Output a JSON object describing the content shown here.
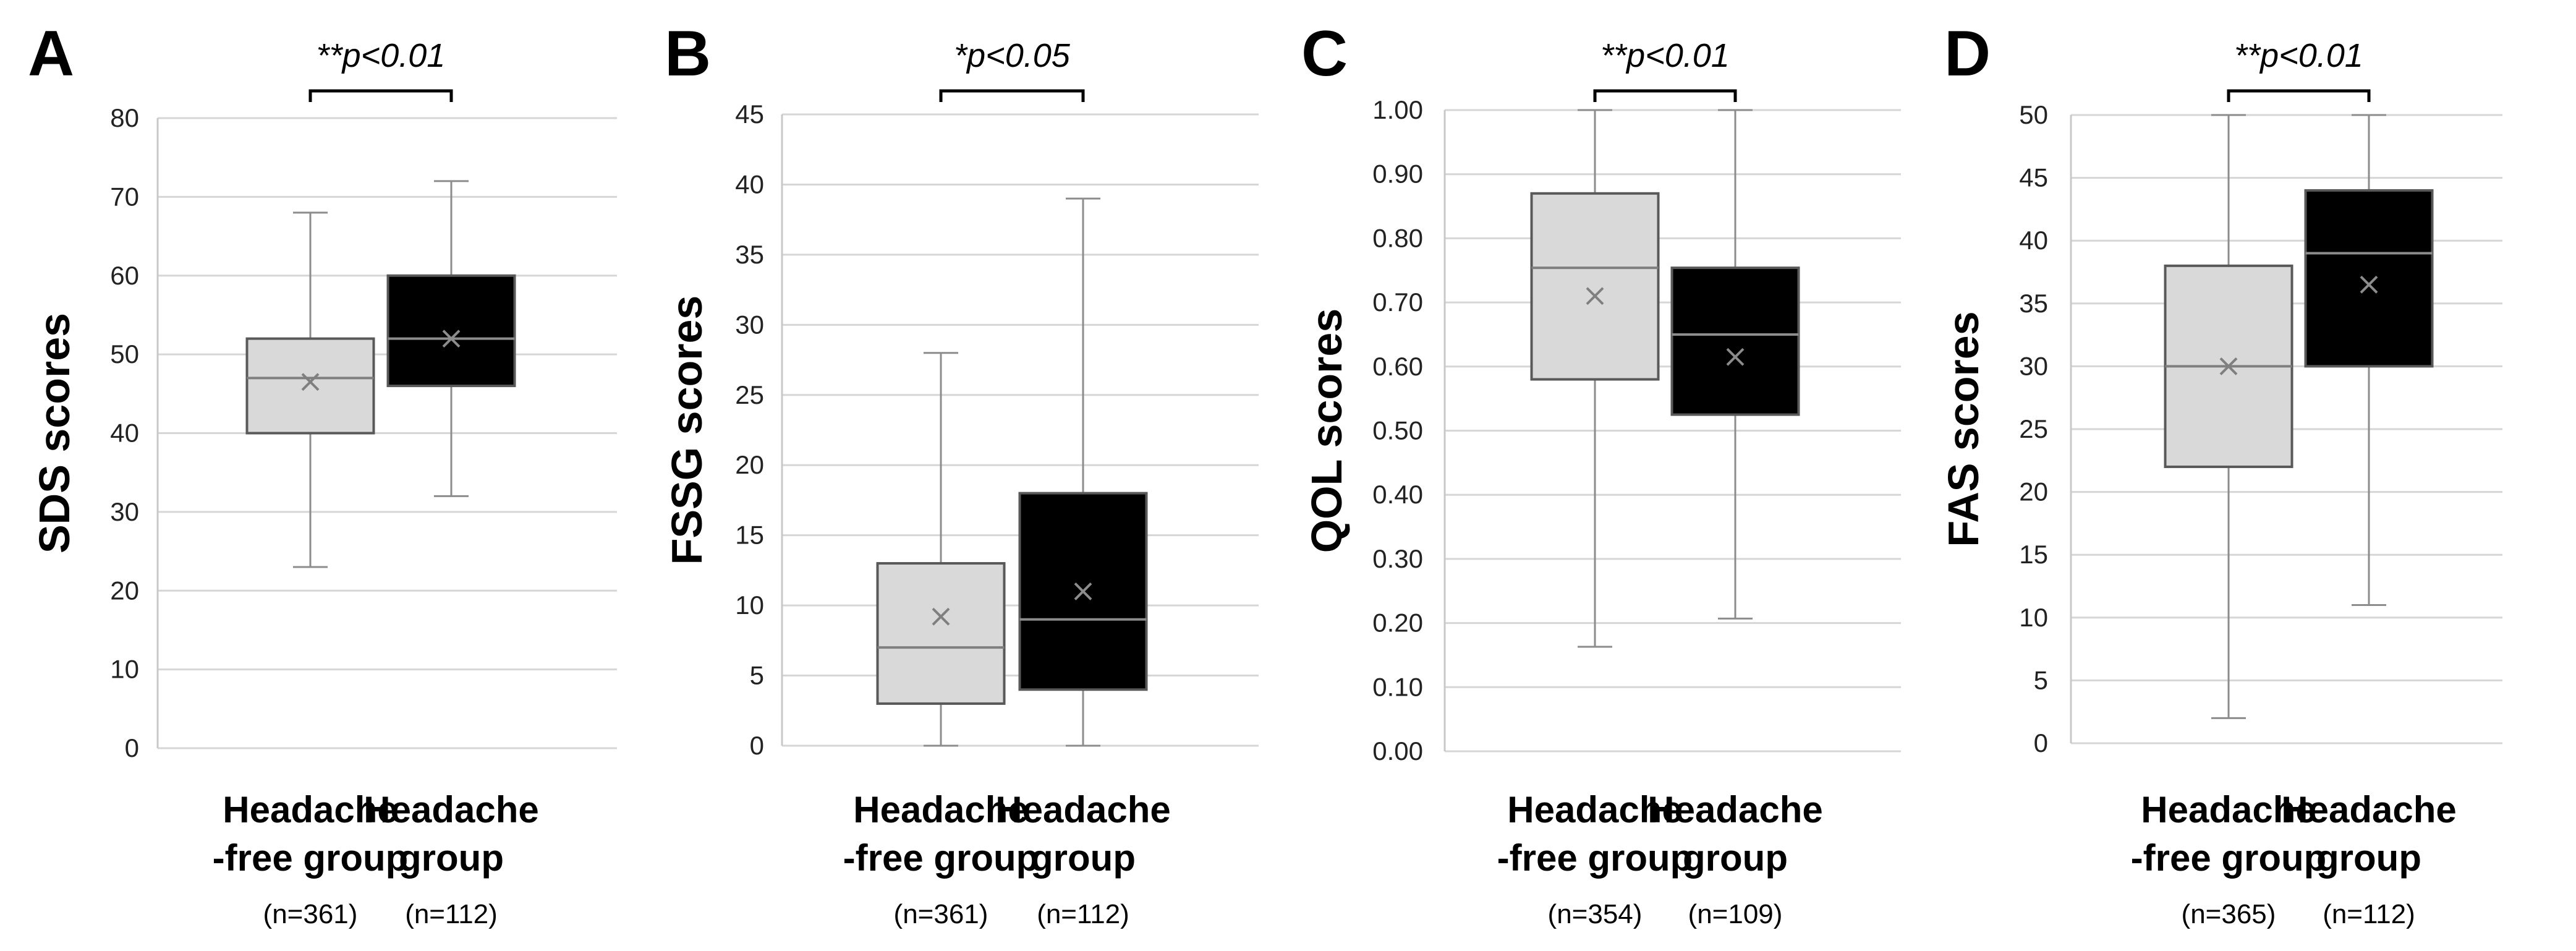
{
  "figure": {
    "panels": [
      "A",
      "B",
      "C",
      "D"
    ]
  },
  "colors": {
    "group1_fill": "#d9d9d9",
    "group1_line": "#7f7f7f",
    "group2_fill": "#000000",
    "group2_line": "#8c8c8c",
    "whisker": "#8c8c8c",
    "box_border": "#595959",
    "bracket": "#000000"
  },
  "chart_data": [
    {
      "panel": "A",
      "type": "box",
      "ylabel": "SDS scores",
      "ylim": [
        0,
        80
      ],
      "yticks": [
        "0",
        "10",
        "20",
        "30",
        "40",
        "50",
        "60",
        "70",
        "80"
      ],
      "ytick_values": [
        0,
        10,
        20,
        30,
        40,
        50,
        60,
        70,
        80
      ],
      "significance": "**p<0.01",
      "groups": [
        {
          "label_line1": "Headache",
          "label_line2": "-free group",
          "n": "(n=361)",
          "min": 23,
          "q1": 40,
          "median": 47,
          "q3": 52,
          "max": 68,
          "mean": 46.5
        },
        {
          "label_line1": "Headache",
          "label_line2": "group",
          "n": "(n=112)",
          "min": 32,
          "q1": 46,
          "median": 52,
          "q3": 60,
          "max": 72,
          "mean": 52
        }
      ]
    },
    {
      "panel": "B",
      "type": "box",
      "ylabel": "FSSG scores",
      "ylim": [
        0,
        45
      ],
      "yticks": [
        "0",
        "5",
        "10",
        "15",
        "20",
        "25",
        "30",
        "35",
        "40",
        "45"
      ],
      "ytick_values": [
        0,
        5,
        10,
        15,
        20,
        25,
        30,
        35,
        40,
        45
      ],
      "significance": "*p<0.05",
      "groups": [
        {
          "label_line1": "Headache",
          "label_line2": "-free group",
          "n": "(n=361)",
          "min": 0,
          "q1": 3,
          "median": 7,
          "q3": 13,
          "max": 28,
          "mean": 9.2
        },
        {
          "label_line1": "Headache",
          "label_line2": "group",
          "n": "(n=112)",
          "min": 0,
          "q1": 4,
          "median": 9,
          "q3": 18,
          "max": 39,
          "mean": 11
        }
      ]
    },
    {
      "panel": "C",
      "type": "box",
      "ylabel": "QOL scores",
      "ylim": [
        0,
        1
      ],
      "yticks": [
        "0.00",
        "0.10",
        "0.20",
        "0.30",
        "0.40",
        "0.50",
        "0.60",
        "0.70",
        "0.80",
        "0.90",
        "1.00"
      ],
      "ytick_values": [
        0,
        0.1,
        0.2,
        0.3,
        0.4,
        0.5,
        0.6,
        0.7,
        0.8,
        0.9,
        1.0
      ],
      "significance": "**p<0.01",
      "groups": [
        {
          "label_line1": "Headache",
          "label_line2": "-free group",
          "n": "(n=354)",
          "min": 0.163,
          "q1": 0.58,
          "median": 0.754,
          "q3": 0.87,
          "max": 1.0,
          "mean": 0.71
        },
        {
          "label_line1": "Headache",
          "label_line2": "group",
          "n": "(n=109)",
          "min": 0.207,
          "q1": 0.525,
          "median": 0.65,
          "q3": 0.754,
          "max": 1.0,
          "mean": 0.615
        }
      ]
    },
    {
      "panel": "D",
      "type": "box",
      "ylabel": "FAS scores",
      "ylim": [
        0,
        50
      ],
      "yticks": [
        "0",
        "5",
        "10",
        "15",
        "20",
        "25",
        "30",
        "35",
        "40",
        "45",
        "50"
      ],
      "ytick_values": [
        0,
        5,
        10,
        15,
        20,
        25,
        30,
        35,
        40,
        45,
        50
      ],
      "significance": "**p<0.01",
      "groups": [
        {
          "label_line1": "Headache",
          "label_line2": "-free group",
          "n": "(n=365)",
          "min": 2,
          "q1": 22,
          "median": 30,
          "q3": 38,
          "max": 50,
          "mean": 30
        },
        {
          "label_line1": "Headache",
          "label_line2": "group",
          "n": "(n=112)",
          "min": 11,
          "q1": 30,
          "median": 39,
          "q3": 44,
          "max": 50,
          "mean": 36.5
        }
      ]
    }
  ]
}
